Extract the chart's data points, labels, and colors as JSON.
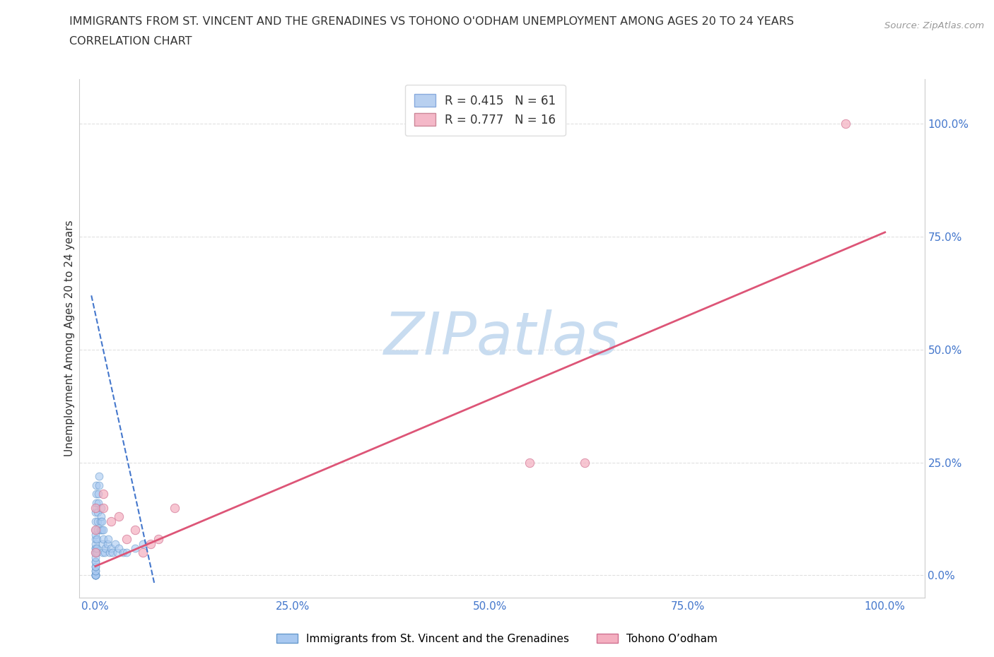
{
  "title_line1": "IMMIGRANTS FROM ST. VINCENT AND THE GRENADINES VS TOHONO O'ODHAM UNEMPLOYMENT AMONG AGES 20 TO 24 YEARS",
  "title_line2": "CORRELATION CHART",
  "source": "Source: ZipAtlas.com",
  "ylabel": "Unemployment Among Ages 20 to 24 years",
  "xlim": [
    -0.02,
    1.05
  ],
  "ylim": [
    -0.05,
    1.1
  ],
  "xticks": [
    0.0,
    0.25,
    0.5,
    0.75,
    1.0
  ],
  "xtick_labels": [
    "0.0%",
    "25.0%",
    "50.0%",
    "75.0%",
    "100.0%"
  ],
  "yticks": [
    0.0,
    0.25,
    0.5,
    0.75,
    1.0
  ],
  "ytick_labels": [
    "0.0%",
    "25.0%",
    "50.0%",
    "75.0%",
    "100.0%"
  ],
  "watermark": "ZIPatlas",
  "watermark_color": "#c8dcf0",
  "blue_scatter_x": [
    0.0,
    0.0,
    0.0,
    0.0,
    0.0,
    0.0,
    0.0,
    0.0,
    0.0,
    0.0,
    0.0,
    0.0,
    0.0,
    0.0,
    0.0,
    0.0,
    0.0,
    0.0,
    0.0,
    0.0,
    0.0,
    0.0,
    0.0,
    0.001,
    0.001,
    0.001,
    0.001,
    0.002,
    0.002,
    0.002,
    0.003,
    0.003,
    0.003,
    0.004,
    0.004,
    0.005,
    0.005,
    0.006,
    0.006,
    0.007,
    0.007,
    0.008,
    0.008,
    0.009,
    0.009,
    0.01,
    0.01,
    0.012,
    0.013,
    0.015,
    0.016,
    0.018,
    0.02,
    0.022,
    0.025,
    0.028,
    0.03,
    0.035,
    0.04,
    0.05,
    0.06
  ],
  "blue_scatter_y": [
    0.0,
    0.0,
    0.0,
    0.0,
    0.0,
    0.0,
    0.01,
    0.01,
    0.02,
    0.02,
    0.03,
    0.03,
    0.04,
    0.05,
    0.05,
    0.06,
    0.06,
    0.07,
    0.08,
    0.09,
    0.1,
    0.12,
    0.14,
    0.15,
    0.16,
    0.18,
    0.2,
    0.05,
    0.06,
    0.08,
    0.1,
    0.12,
    0.14,
    0.16,
    0.18,
    0.2,
    0.22,
    0.1,
    0.12,
    0.13,
    0.15,
    0.1,
    0.12,
    0.05,
    0.07,
    0.08,
    0.1,
    0.05,
    0.06,
    0.07,
    0.08,
    0.05,
    0.06,
    0.05,
    0.07,
    0.05,
    0.06,
    0.05,
    0.05,
    0.06,
    0.07
  ],
  "blue_color": "#a8c8f0",
  "blue_alpha": 0.6,
  "blue_edgecolor": "#6699cc",
  "blue_size": 60,
  "pink_scatter_x": [
    0.0,
    0.0,
    0.0,
    0.01,
    0.01,
    0.02,
    0.03,
    0.04,
    0.05,
    0.06,
    0.07,
    0.08,
    0.1,
    0.55,
    0.62,
    0.95
  ],
  "pink_scatter_y": [
    0.05,
    0.1,
    0.15,
    0.15,
    0.18,
    0.12,
    0.13,
    0.08,
    0.1,
    0.05,
    0.07,
    0.08,
    0.15,
    0.25,
    0.25,
    1.0
  ],
  "pink_color": "#f4afc0",
  "pink_alpha": 0.7,
  "pink_edgecolor": "#d07090",
  "pink_size": 80,
  "blue_trend_x": [
    -0.005,
    0.075
  ],
  "blue_trend_y": [
    0.62,
    -0.02
  ],
  "blue_trend_color": "#4477cc",
  "blue_trend_linestyle": "--",
  "pink_trend_x": [
    0.0,
    1.0
  ],
  "pink_trend_y": [
    0.02,
    0.76
  ],
  "pink_trend_color": "#dd5577",
  "pink_trend_linestyle": "-",
  "grid_color": "#cccccc",
  "grid_linestyle": "--",
  "grid_alpha": 0.6,
  "bg_color": "#ffffff",
  "legend1_label": "R = 0.415   N = 61",
  "legend2_label": "R = 0.777   N = 16",
  "legend_box_blue": "#b8d0f0",
  "legend_box_pink": "#f4b8c8",
  "series1_name": "Immigrants from St. Vincent and the Grenadines",
  "series2_name": "Tohono O’odham",
  "title_fontsize": 11.5,
  "subtitle_fontsize": 11.5,
  "source_fontsize": 9.5,
  "tick_fontsize": 11,
  "ylabel_fontsize": 11,
  "legend_fontsize": 12
}
